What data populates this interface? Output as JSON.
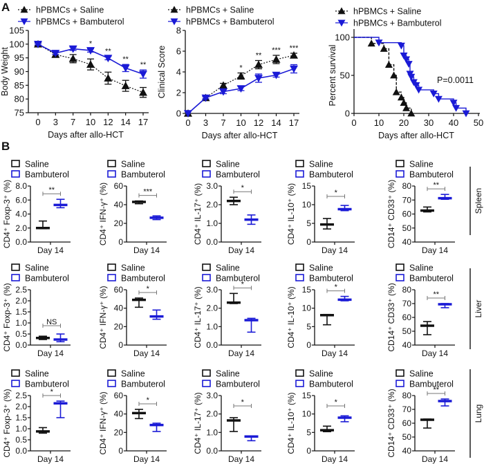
{
  "panel_labels": {
    "a": "A",
    "b": "B"
  },
  "colors": {
    "saline": "#111111",
    "bambuterol": "#1a1ad6",
    "bracket": "#777777"
  },
  "chart_data": [
    {
      "type": "line",
      "panel": "A",
      "ylabel": "Body Weight",
      "xlabel": "Days after allo-HCT",
      "categories": [
        "0",
        "3",
        "7",
        "10",
        "12",
        "14",
        "17"
      ],
      "ylim": [
        75,
        105
      ],
      "yticks": [
        "75",
        "80",
        "85",
        "90",
        "95",
        "100",
        "105"
      ],
      "legend": [
        "hPBMCs + Saline",
        "hPBMCs + Bambuterol"
      ],
      "series": [
        {
          "name": "hPBMCs + Saline",
          "marker": "triangle-up",
          "line": "dotted",
          "values": [
            100,
            96.2,
            94.7,
            92.6,
            87.6,
            84.8,
            82.4
          ],
          "error": [
            0.5,
            0.8,
            1.5,
            2.0,
            2.2,
            2.0,
            1.8
          ]
        },
        {
          "name": "hPBMCs + Bambuterol",
          "marker": "triangle-down",
          "line": "solid",
          "values": [
            100,
            96.7,
            98.3,
            97.7,
            94.9,
            91.3,
            89.1
          ],
          "error": [
            0.3,
            0.5,
            0.6,
            0.6,
            0.6,
            1.3,
            1.5
          ]
        }
      ],
      "significance": [
        "",
        "",
        "",
        "*",
        "**",
        "**",
        "**"
      ]
    },
    {
      "type": "line",
      "panel": "A",
      "ylabel": "Clinical Score",
      "xlabel": "Days after allo-HCT",
      "categories": [
        "0",
        "3",
        "7",
        "10",
        "12",
        "14",
        "17"
      ],
      "ylim": [
        0,
        8
      ],
      "yticks": [
        "0",
        "2",
        "4",
        "6",
        "8"
      ],
      "legend": [
        "hPBMCs + Saline",
        "hPBMCs + Bambuterol"
      ],
      "series": [
        {
          "name": "hPBMCs + Saline",
          "marker": "triangle-up",
          "line": "dotted",
          "values": [
            0,
            1.5,
            2.7,
            3.6,
            4.7,
            5.2,
            5.6
          ],
          "error": [
            0,
            0.1,
            0.2,
            0.3,
            0.4,
            0.4,
            0.2
          ]
        },
        {
          "name": "hPBMCs + Bambuterol",
          "marker": "triangle-down",
          "line": "solid",
          "values": [
            0,
            1.5,
            2.1,
            2.4,
            3.4,
            3.7,
            4.3
          ],
          "error": [
            0,
            0.1,
            0.2,
            0.2,
            0.4,
            0.2,
            0.4
          ]
        }
      ],
      "significance": [
        "",
        "",
        "",
        "*",
        "**",
        "***",
        "***"
      ]
    },
    {
      "type": "step",
      "panel": "A",
      "ylabel": "Percent survival",
      "xlabel": "Days after allo-HCT",
      "xlim": [
        0,
        50
      ],
      "xticks": [
        "0",
        "10",
        "20",
        "30",
        "40",
        "50"
      ],
      "ylim": [
        0,
        100
      ],
      "yticks": [
        "0",
        "50",
        "100"
      ],
      "legend": [
        "hPBMCs + Saline",
        "hPBMCs + Bambuterol"
      ],
      "annotation": "P=0.0011",
      "series": [
        {
          "name": "hPBMCs + Saline",
          "marker": "triangle-up",
          "line": "dashed",
          "x": [
            7,
            12,
            14,
            16,
            17,
            19,
            20,
            21,
            23
          ],
          "y": [
            92,
            85,
            64,
            50,
            28,
            21,
            14,
            7,
            0
          ]
        },
        {
          "name": "hPBMCs + Bambuterol",
          "marker": "triangle-down",
          "line": "solid",
          "x": [
            10,
            19,
            20,
            21,
            22,
            22.5,
            23,
            24,
            25,
            26,
            32,
            34,
            40,
            41,
            45
          ],
          "y": [
            93,
            89,
            76,
            71,
            65,
            52,
            48,
            41,
            37,
            31,
            26,
            19,
            14,
            7,
            0
          ]
        }
      ]
    },
    {
      "type": "floating-bar",
      "panel": "B",
      "xlabel": "Day 14",
      "legend": [
        "Saline",
        "Bambuterol"
      ],
      "rows": [
        {
          "organ": "Spleen",
          "plots": [
            {
              "ylabel": "CD4⁺ Foxp-3⁺ (%)",
              "ylim": [
                0,
                8
              ],
              "yticks": [
                "0.0",
                "2.0",
                "4.0",
                "6.0",
                "8.0"
              ],
              "saline": {
                "min": 1.9,
                "mean": 2.0,
                "max": 3.0
              },
              "bambuterol": {
                "min": 4.9,
                "mean": 5.3,
                "max": 6.1
              },
              "significance": "**"
            },
            {
              "ylabel": "CD4⁺ IFN-γ⁺ (%)",
              "ylim": [
                0,
                60
              ],
              "yticks": [
                "0",
                "20",
                "40",
                "60"
              ],
              "saline": {
                "min": 41,
                "mean": 43,
                "max": 44
              },
              "bambuterol": {
                "min": 24,
                "mean": 26,
                "max": 28
              },
              "significance": "***"
            },
            {
              "ylabel": "CD4⁺ IL-17⁺ (%)",
              "ylim": [
                0,
                3
              ],
              "yticks": [
                "0.0",
                "1.0",
                "2.0",
                "3.0"
              ],
              "saline": {
                "min": 2.0,
                "mean": 2.2,
                "max": 2.4
              },
              "bambuterol": {
                "min": 0.95,
                "mean": 1.2,
                "max": 1.45
              },
              "significance": "*"
            },
            {
              "ylabel": "CD4⁺ IL-10⁺ (%)",
              "ylim": [
                0,
                15
              ],
              "yticks": [
                "0",
                "5",
                "10",
                "15"
              ],
              "saline": {
                "min": 3.5,
                "mean": 4.7,
                "max": 6.3
              },
              "bambuterol": {
                "min": 8.4,
                "mean": 8.8,
                "max": 9.8
              },
              "significance": "*"
            },
            {
              "ylabel": "CD14⁺ CD33⁺ (%)",
              "ylim": [
                40,
                80
              ],
              "yticks": [
                "40",
                "50",
                "60",
                "70",
                "80"
              ],
              "saline": {
                "min": 61.5,
                "mean": 62.5,
                "max": 65
              },
              "bambuterol": {
                "min": 70.5,
                "mean": 71.3,
                "max": 74
              },
              "significance": "**"
            }
          ]
        },
        {
          "organ": "Liver",
          "plots": [
            {
              "ylabel": "CD4⁺ Foxp-3⁺ (%)",
              "ylim": [
                0,
                2.5
              ],
              "yticks": [
                "0.0",
                "0.5",
                "1.0",
                "1.5",
                "2.0",
                "2.5"
              ],
              "saline": {
                "min": 0.25,
                "mean": 0.32,
                "max": 0.4
              },
              "bambuterol": {
                "min": 0.15,
                "mean": 0.25,
                "max": 0.5
              },
              "significance": "NS"
            },
            {
              "ylabel": "CD4⁺ IFN-γ⁺ (%)",
              "ylim": [
                0,
                60
              ],
              "yticks": [
                "0",
                "20",
                "40",
                "60"
              ],
              "saline": {
                "min": 41,
                "mean": 49,
                "max": 51
              },
              "bambuterol": {
                "min": 28,
                "mean": 31,
                "max": 38
              },
              "significance": "*"
            },
            {
              "ylabel": "CD4⁺ IL-17⁺ (%)",
              "ylim": [
                0,
                3
              ],
              "yticks": [
                "0.0",
                "1.0",
                "2.0",
                "3.0"
              ],
              "saline": {
                "min": 2.25,
                "mean": 2.3,
                "max": 2.8
              },
              "bambuterol": {
                "min": 0.7,
                "mean": 1.35,
                "max": 1.45
              },
              "significance": "*"
            },
            {
              "ylabel": "CD4⁺ IL-10⁺ (%)",
              "ylim": [
                0,
                15
              ],
              "yticks": [
                "0",
                "5",
                "10",
                "15"
              ],
              "saline": {
                "min": 5.5,
                "mean": 8.1,
                "max": 8.3
              },
              "bambuterol": {
                "min": 12.0,
                "mean": 12.3,
                "max": 13.2
              },
              "significance": "*"
            },
            {
              "ylabel": "CD14⁺ CD33⁺ (%)",
              "ylim": [
                40,
                80
              ],
              "yticks": [
                "40",
                "50",
                "60",
                "70",
                "80"
              ],
              "saline": {
                "min": 47.5,
                "mean": 54,
                "max": 57
              },
              "bambuterol": {
                "min": 67,
                "mean": 69.5,
                "max": 70
              },
              "significance": "**"
            }
          ]
        },
        {
          "organ": "Lung",
          "plots": [
            {
              "ylabel": "CD4⁺ Foxp-3⁺ (%)",
              "ylim": [
                0,
                2.5
              ],
              "yticks": [
                "0.0",
                "0.5",
                "1.0",
                "1.5",
                "2.0",
                "2.5"
              ],
              "saline": {
                "min": 0.8,
                "mean": 0.88,
                "max": 1.05
              },
              "bambuterol": {
                "min": 1.5,
                "mean": 2.15,
                "max": 2.25
              },
              "significance": "*"
            },
            {
              "ylabel": "CD4⁺ IFN-γ⁺ (%)",
              "ylim": [
                0,
                60
              ],
              "yticks": [
                "0",
                "20",
                "40",
                "60"
              ],
              "saline": {
                "min": 35,
                "mean": 41,
                "max": 45
              },
              "bambuterol": {
                "min": 21,
                "mean": 28,
                "max": 30
              },
              "significance": "*"
            },
            {
              "ylabel": "CD4⁺ IL-17⁺ (%)",
              "ylim": [
                0,
                3
              ],
              "yticks": [
                "0.0",
                "1.0",
                "2.0",
                "3.0"
              ],
              "saline": {
                "min": 1.05,
                "mean": 1.65,
                "max": 1.8
              },
              "bambuterol": {
                "min": 0.55,
                "mean": 0.78,
                "max": 0.8
              },
              "significance": "*"
            },
            {
              "ylabel": "CD4⁺ IL-10⁺ (%)",
              "ylim": [
                0,
                15
              ],
              "yticks": [
                "0",
                "5",
                "10",
                "15"
              ],
              "saline": {
                "min": 5.2,
                "mean": 5.6,
                "max": 6.7
              },
              "bambuterol": {
                "min": 7.9,
                "mean": 9.0,
                "max": 9.5
              },
              "significance": "*"
            },
            {
              "ylabel": "CD14⁺ CD33⁺ (%)",
              "ylim": [
                40,
                80
              ],
              "yticks": [
                "40",
                "50",
                "60",
                "70",
                "80"
              ],
              "saline": {
                "min": 56.5,
                "mean": 62.5,
                "max": 63
              },
              "bambuterol": {
                "min": 72.5,
                "mean": 76,
                "max": 77.5
              },
              "significance": "**"
            }
          ]
        }
      ]
    }
  ]
}
